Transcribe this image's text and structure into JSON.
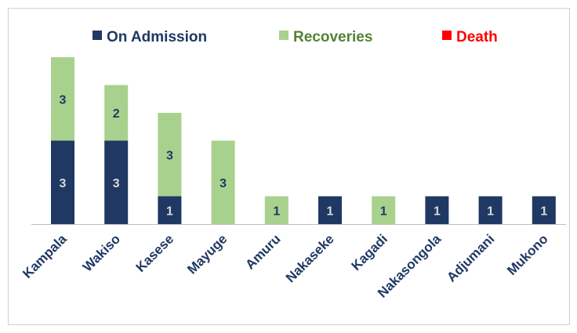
{
  "chart_data": {
    "type": "bar",
    "stacked": true,
    "categories": [
      "Kampala",
      "Wakiso",
      "Kasese",
      "Mayuge",
      "Amuru",
      "Nakaseke",
      "Kagadi",
      "Nakasongola",
      "Adjumani",
      "Mukono"
    ],
    "series": [
      {
        "name": "On Admission",
        "color": "#1f3864",
        "label_color": "#d9d9d9",
        "values": [
          3,
          3,
          1,
          0,
          0,
          1,
          0,
          1,
          1,
          1
        ]
      },
      {
        "name": "Recoveries",
        "color": "#a9d18e",
        "label_color": "#1f3864",
        "values": [
          3,
          2,
          3,
          3,
          1,
          0,
          1,
          0,
          0,
          0
        ]
      },
      {
        "name": "Death",
        "color": "#ff0000",
        "label_color": "#ffffff",
        "values": [
          0,
          0,
          0,
          0,
          0,
          0,
          0,
          0,
          0,
          0
        ]
      }
    ],
    "legend": {
      "placement": "top",
      "entries": [
        {
          "label": "On Admission",
          "text_color": "#1f3864",
          "swatch_color": "#1f3864"
        },
        {
          "label": "Recoveries",
          "text_color": "#548235",
          "swatch_color": "#a9d18e"
        },
        {
          "label": "Death",
          "text_color": "#ff0000",
          "swatch_color": "#ff0000"
        }
      ]
    },
    "ylim": [
      0,
      6
    ],
    "grid": false,
    "axis_color": "#bfbfbf"
  }
}
